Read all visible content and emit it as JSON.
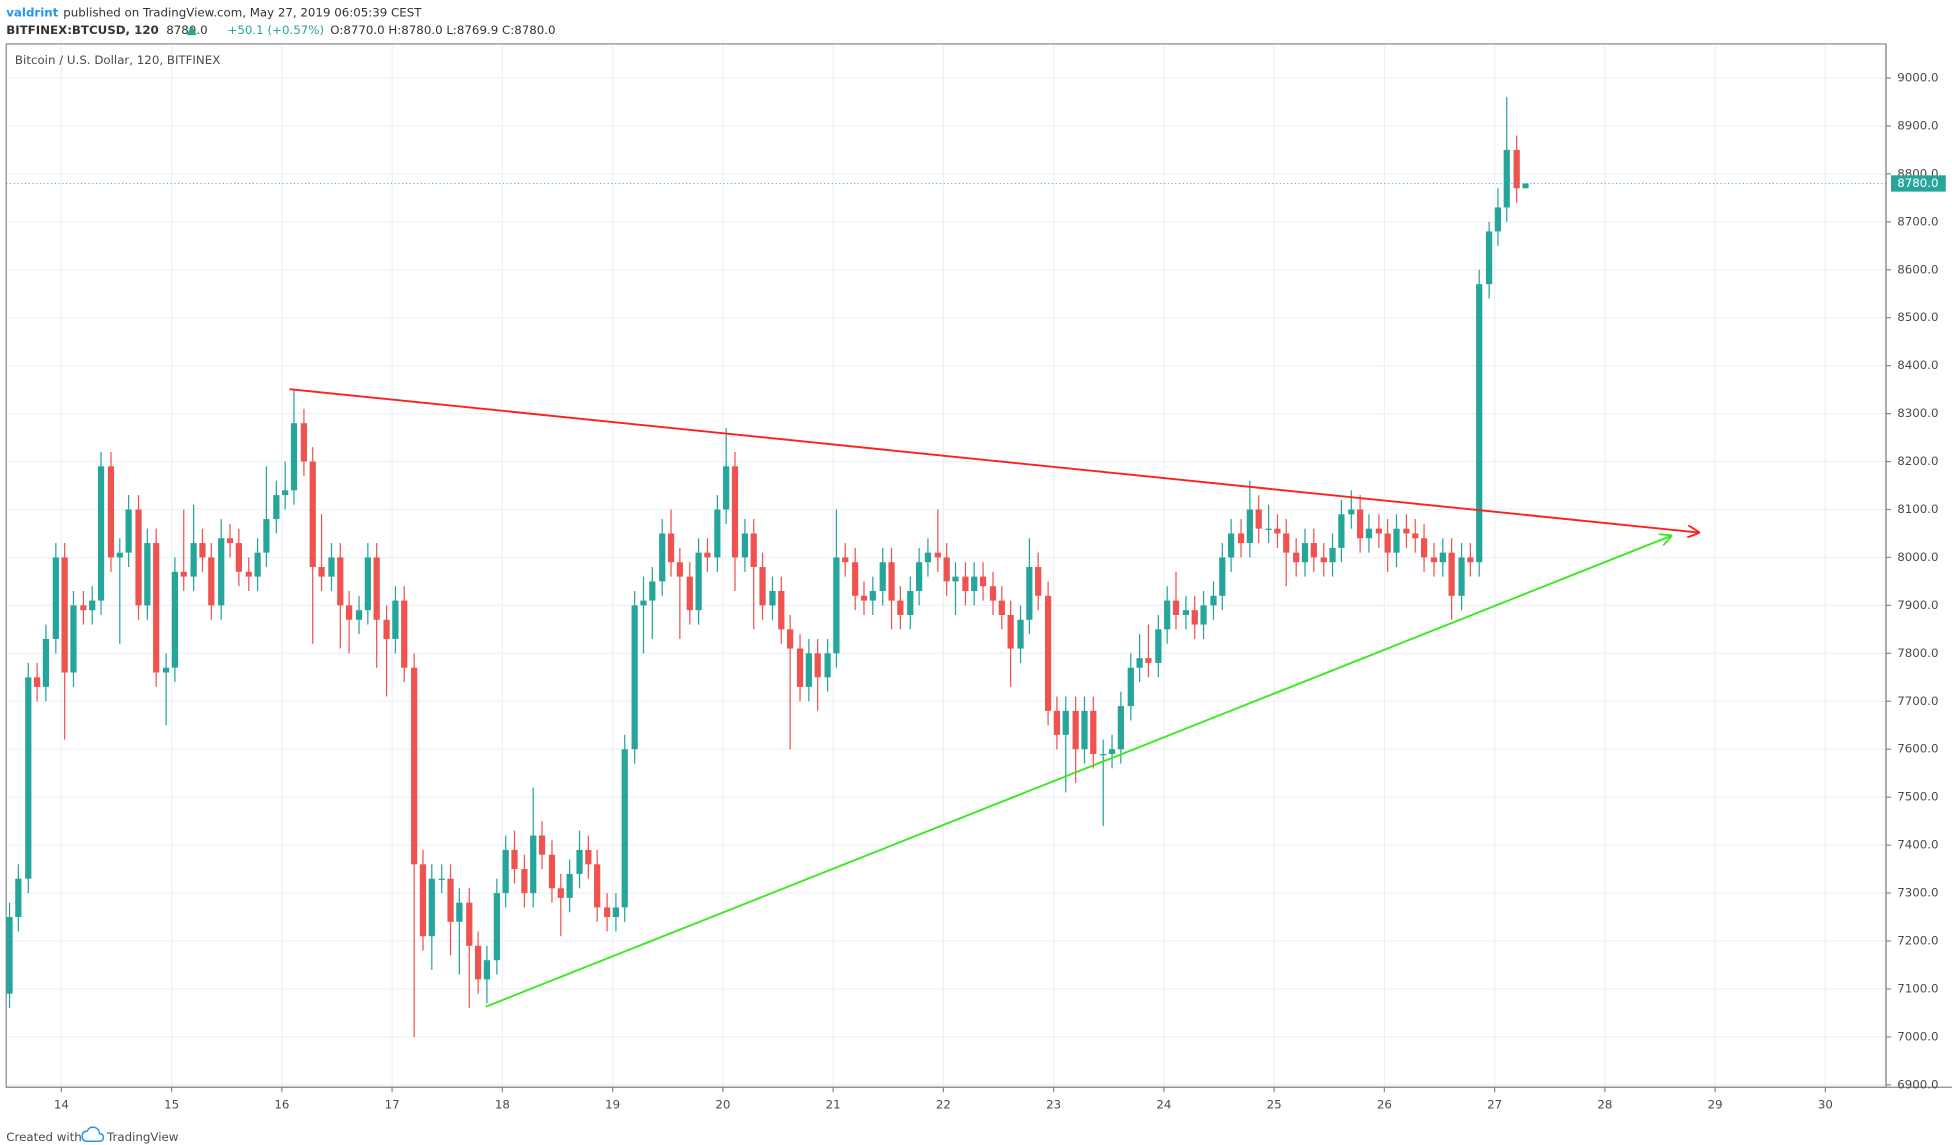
{
  "header": {
    "author": "valdrint",
    "published": "published on TradingView.com, May 27, 2019 06:05:39 CEST",
    "symbol": "BITFINEX:BTCUSD, 120",
    "last": "8780.0",
    "change": "+50.1 (+0.57%)",
    "open": "O:8770.0",
    "high": "H:8780.0",
    "low": "L:8769.9",
    "close": "C:8780.0"
  },
  "footer": {
    "created": "Created with",
    "brand": "TradingView"
  },
  "chart_data": {
    "type": "candlestick",
    "title": "Bitcoin / U.S. Dollar, 120, BITFINEX",
    "up_color": "#26a69a",
    "down_color": "#ef5350",
    "grid": true,
    "xlim": [
      13.5,
      30.55
    ],
    "ylim": [
      6895,
      9071
    ],
    "xticks": [
      14,
      15,
      16,
      17,
      18,
      19,
      20,
      21,
      22,
      23,
      24,
      25,
      26,
      27,
      28,
      29,
      30
    ],
    "yticks": [
      {
        "value": 6900,
        "label": "6900.0"
      },
      {
        "value": 7000,
        "label": "7000.0"
      },
      {
        "value": 7100,
        "label": "7100.0"
      },
      {
        "value": 7200,
        "label": "7200.0"
      },
      {
        "value": 7300,
        "label": "7300.0"
      },
      {
        "value": 7400,
        "label": "7400.0"
      },
      {
        "value": 7500,
        "label": "7500.0"
      },
      {
        "value": 7600,
        "label": "7600.0"
      },
      {
        "value": 7700,
        "label": "7700.0"
      },
      {
        "value": 7800,
        "label": "7800.0"
      },
      {
        "value": 7900,
        "label": "7900.0"
      },
      {
        "value": 8000,
        "label": "8000.0"
      },
      {
        "value": 8100,
        "label": "8100.0"
      },
      {
        "value": 8200,
        "label": "8200.0"
      },
      {
        "value": 8300,
        "label": "8300.0"
      },
      {
        "value": 8400,
        "label": "8400.0"
      },
      {
        "value": 8500,
        "label": "8500.0"
      },
      {
        "value": 8600,
        "label": "8600.0"
      },
      {
        "value": 8700,
        "label": "8700.0"
      },
      {
        "value": 8800,
        "label": "8800.0"
      },
      {
        "value": 8900,
        "label": "8900.0"
      },
      {
        "value": 9000,
        "label": "9000.0"
      }
    ],
    "last_price": {
      "value": 8780,
      "label": "8780.0"
    },
    "x": [
      13.53,
      13.61,
      13.7,
      13.78,
      13.86,
      13.95,
      14.03,
      14.11,
      14.2,
      14.28,
      14.36,
      14.45,
      14.53,
      14.61,
      14.7,
      14.78,
      14.86,
      14.95,
      15.03,
      15.11,
      15.2,
      15.28,
      15.36,
      15.45,
      15.53,
      15.61,
      15.7,
      15.78,
      15.86,
      15.95,
      16.03,
      16.11,
      16.2,
      16.28,
      16.36,
      16.45,
      16.53,
      16.61,
      16.7,
      16.78,
      16.86,
      16.95,
      17.03,
      17.11,
      17.2,
      17.28,
      17.36,
      17.45,
      17.53,
      17.61,
      17.7,
      17.78,
      17.86,
      17.95,
      18.03,
      18.11,
      18.2,
      18.28,
      18.36,
      18.45,
      18.53,
      18.61,
      18.7,
      18.78,
      18.86,
      18.95,
      19.03,
      19.11,
      19.2,
      19.28,
      19.36,
      19.45,
      19.53,
      19.61,
      19.7,
      19.78,
      19.86,
      19.95,
      20.03,
      20.11,
      20.2,
      20.28,
      20.36,
      20.45,
      20.53,
      20.61,
      20.7,
      20.78,
      20.86,
      20.95,
      21.03,
      21.11,
      21.2,
      21.28,
      21.36,
      21.45,
      21.53,
      21.61,
      21.7,
      21.78,
      21.86,
      21.95,
      22.03,
      22.11,
      22.2,
      22.28,
      22.36,
      22.45,
      22.53,
      22.61,
      22.7,
      22.78,
      22.86,
      22.95,
      23.03,
      23.11,
      23.2,
      23.28,
      23.36,
      23.45,
      23.53,
      23.61,
      23.7,
      23.78,
      23.86,
      23.95,
      24.03,
      24.11,
      24.2,
      24.28,
      24.36,
      24.45,
      24.53,
      24.61,
      24.7,
      24.78,
      24.86,
      24.95,
      25.03,
      25.11,
      25.2,
      25.28,
      25.36,
      25.45,
      25.53,
      25.61,
      25.7,
      25.78,
      25.86,
      25.95,
      26.03,
      26.11,
      26.2,
      26.28,
      26.36,
      26.45,
      26.53,
      26.61,
      26.7,
      26.78,
      26.86,
      26.95,
      27.03,
      27.11,
      27.2,
      27.28
    ],
    "open": [
      7090,
      7250,
      7330,
      7750,
      7730,
      7830,
      8000,
      7760,
      7900,
      7890,
      7910,
      8190,
      8000,
      8010,
      8100,
      7900,
      8030,
      7760,
      7770,
      7970,
      7960,
      8030,
      8000,
      7900,
      8040,
      8030,
      7970,
      7960,
      8010,
      8080,
      8130,
      8140,
      8280,
      8200,
      7980,
      7960,
      8000,
      7900,
      7870,
      7890,
      8000,
      7870,
      7830,
      7910,
      7770,
      7360,
      7210,
      7330,
      7330,
      7240,
      7280,
      7190,
      7120,
      7160,
      7300,
      7390,
      7350,
      7300,
      7420,
      7380,
      7310,
      7290,
      7340,
      7390,
      7360,
      7270,
      7250,
      7270,
      7600,
      7900,
      7910,
      7950,
      8050,
      7990,
      7960,
      7890,
      8010,
      8000,
      8100,
      8190,
      8000,
      8050,
      7980,
      7900,
      7930,
      7850,
      7810,
      7730,
      7800,
      7750,
      7800,
      8000,
      7990,
      7920,
      7910,
      7930,
      7990,
      7910,
      7880,
      7930,
      7990,
      8010,
      8000,
      7950,
      7960,
      7930,
      7960,
      7940,
      7910,
      7880,
      7810,
      7870,
      7980,
      7920,
      7680,
      7630,
      7680,
      7600,
      7680,
      7590,
      7590,
      7600,
      7690,
      7770,
      7790,
      7780,
      7850,
      7910,
      7880,
      7890,
      7860,
      7900,
      7920,
      8000,
      8050,
      8030,
      8100,
      8060,
      8060,
      8050,
      8010,
      7990,
      8030,
      8000,
      7990,
      8020,
      8090,
      8100,
      8040,
      8060,
      8050,
      8010,
      8060,
      8050,
      8040,
      8000,
      7990,
      8010,
      7920,
      8000,
      7990,
      8570,
      8680,
      8730,
      8850,
      8770
    ],
    "high": [
      7280,
      7360,
      7780,
      7780,
      7860,
      8030,
      8030,
      7930,
      7930,
      7940,
      8220,
      8220,
      8040,
      8130,
      8130,
      8060,
      8060,
      7800,
      8000,
      8100,
      8110,
      8060,
      8030,
      8080,
      8070,
      8060,
      8000,
      8040,
      8190,
      8160,
      8200,
      8350,
      8310,
      8230,
      8090,
      8030,
      8030,
      7930,
      7920,
      8030,
      8030,
      7900,
      7940,
      7940,
      7800,
      7390,
      7360,
      7360,
      7360,
      7310,
      7310,
      7220,
      7190,
      7330,
      7420,
      7430,
      7380,
      7520,
      7450,
      7410,
      7340,
      7370,
      7430,
      7420,
      7390,
      7300,
      7300,
      7630,
      7930,
      7960,
      7980,
      8080,
      8100,
      8020,
      7990,
      8040,
      8040,
      8130,
      8270,
      8220,
      8080,
      8080,
      8010,
      7960,
      7960,
      7880,
      7840,
      7830,
      7830,
      7830,
      8100,
      8030,
      8020,
      7950,
      7960,
      8020,
      8020,
      7940,
      7960,
      8020,
      8040,
      8100,
      8030,
      7990,
      7990,
      7990,
      7990,
      7970,
      7940,
      7910,
      7900,
      8040,
      8010,
      7950,
      7710,
      7710,
      7710,
      7710,
      7710,
      7620,
      7630,
      7720,
      7800,
      7840,
      7860,
      7880,
      7940,
      7970,
      7920,
      7920,
      7930,
      7950,
      8030,
      8080,
      8080,
      8160,
      8130,
      8110,
      8090,
      8080,
      8040,
      8060,
      8060,
      8030,
      8050,
      8120,
      8140,
      8130,
      8090,
      8090,
      8080,
      8090,
      8090,
      8080,
      8070,
      8030,
      8040,
      8040,
      8030,
      8030,
      8600,
      8700,
      8770,
      8960,
      8880,
      8780
    ],
    "low": [
      7060,
      7220,
      7300,
      7700,
      7700,
      7800,
      7620,
      7730,
      7860,
      7860,
      7880,
      7970,
      7820,
      7980,
      7870,
      7870,
      7730,
      7650,
      7740,
      7930,
      7930,
      7970,
      7870,
      7870,
      8000,
      7940,
      7930,
      7930,
      7980,
      8050,
      8100,
      8110,
      8170,
      7820,
      7930,
      7930,
      7810,
      7800,
      7840,
      7860,
      7770,
      7710,
      7800,
      7740,
      7000,
      7180,
      7140,
      7300,
      7170,
      7130,
      7060,
      7090,
      7070,
      7130,
      7270,
      7320,
      7270,
      7270,
      7350,
      7280,
      7210,
      7260,
      7310,
      7330,
      7240,
      7220,
      7220,
      7240,
      7570,
      7800,
      7830,
      7920,
      7960,
      7830,
      7860,
      7860,
      7970,
      7970,
      8070,
      7930,
      7970,
      7850,
      7870,
      7870,
      7820,
      7600,
      7700,
      7700,
      7680,
      7720,
      7770,
      7960,
      7890,
      7880,
      7880,
      7900,
      7850,
      7850,
      7850,
      7900,
      7960,
      7970,
      7920,
      7880,
      7900,
      7900,
      7910,
      7880,
      7850,
      7730,
      7780,
      7840,
      7890,
      7650,
      7600,
      7510,
      7530,
      7570,
      7560,
      7440,
      7560,
      7570,
      7660,
      7740,
      7750,
      7750,
      7820,
      7850,
      7850,
      7830,
      7830,
      7870,
      7890,
      7970,
      8000,
      8000,
      8030,
      8030,
      8020,
      7940,
      7960,
      7960,
      7970,
      7960,
      7960,
      7990,
      8060,
      8010,
      8010,
      8020,
      7970,
      7980,
      8020,
      8010,
      7970,
      7960,
      7960,
      7870,
      7890,
      7960,
      7960,
      8540,
      8650,
      8700,
      8740,
      8769.9
    ],
    "close": [
      7250,
      7330,
      7750,
      7730,
      7830,
      8000,
      7760,
      7900,
      7890,
      7910,
      8190,
      8000,
      8010,
      8100,
      7900,
      8030,
      7760,
      7770,
      7970,
      7960,
      8030,
      8000,
      7900,
      8040,
      8030,
      7970,
      7960,
      8010,
      8080,
      8130,
      8140,
      8280,
      8200,
      7980,
      7960,
      8000,
      7900,
      7870,
      7890,
      8000,
      7870,
      7830,
      7910,
      7770,
      7360,
      7210,
      7330,
      7330,
      7240,
      7280,
      7190,
      7120,
      7160,
      7300,
      7390,
      7350,
      7300,
      7420,
      7380,
      7310,
      7290,
      7340,
      7390,
      7360,
      7270,
      7250,
      7270,
      7600,
      7900,
      7910,
      7950,
      8050,
      7990,
      7960,
      7890,
      8010,
      8000,
      8100,
      8190,
      8000,
      8050,
      7980,
      7900,
      7930,
      7850,
      7810,
      7730,
      7800,
      7750,
      7800,
      8000,
      7990,
      7920,
      7910,
      7930,
      7990,
      7910,
      7880,
      7930,
      7990,
      8010,
      8000,
      7950,
      7960,
      7930,
      7960,
      7940,
      7910,
      7880,
      7810,
      7870,
      7980,
      7920,
      7680,
      7630,
      7680,
      7600,
      7680,
      7590,
      7590,
      7600,
      7690,
      7770,
      7790,
      7780,
      7850,
      7910,
      7880,
      7890,
      7860,
      7900,
      7920,
      8000,
      8050,
      8030,
      8100,
      8060,
      8060,
      8050,
      8010,
      7990,
      8030,
      8000,
      7990,
      8020,
      8090,
      8100,
      8040,
      8060,
      8050,
      8010,
      8060,
      8050,
      8040,
      8000,
      7990,
      8010,
      7920,
      8000,
      7990,
      8570,
      8680,
      8730,
      8850,
      8770,
      8780
    ],
    "trendlines": [
      {
        "color": "#ff1f1f",
        "x": [
          16.07,
          28.85
        ],
        "y": [
          8351,
          8052
        ]
      },
      {
        "color": "#39e81f",
        "x": [
          17.85,
          28.6
        ],
        "y": [
          7063,
          8045
        ]
      }
    ]
  }
}
